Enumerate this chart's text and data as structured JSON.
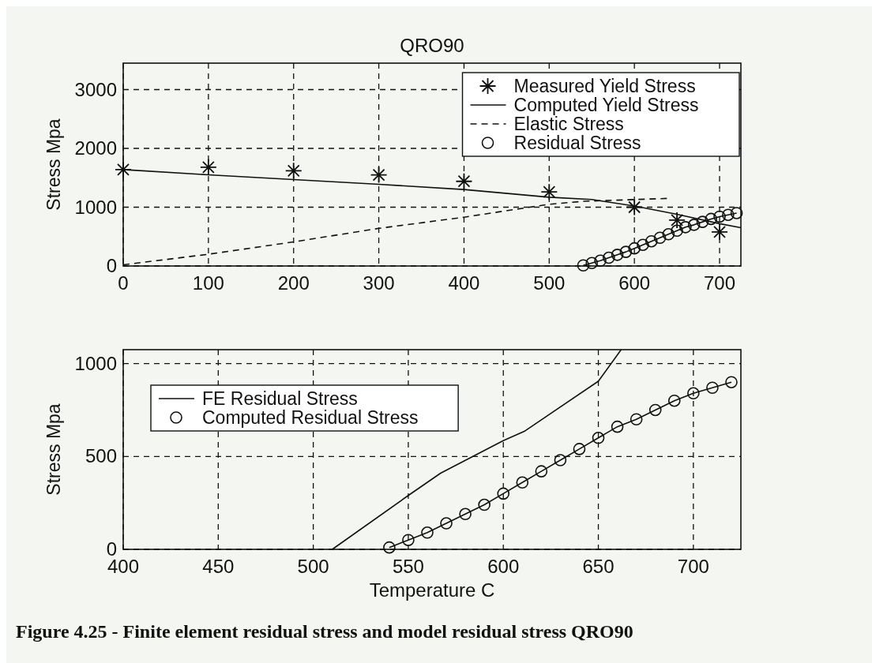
{
  "chart_data": [
    {
      "type": "line",
      "title": "QRO90",
      "ylabel": "Stress Mpa",
      "xlim": [
        0,
        725
      ],
      "ylim": [
        0,
        3450
      ],
      "xticks": [
        0,
        100,
        200,
        300,
        400,
        500,
        600,
        700
      ],
      "yticks": [
        0,
        1000,
        2000,
        3000
      ],
      "grid": true,
      "legend": "top right",
      "series": [
        {
          "name": "Measured Yield Stress",
          "type": "scatter",
          "color": "#111111",
          "marker": "cross",
          "x": [
            0,
            100,
            200,
            300,
            400,
            500,
            600,
            650,
            700
          ],
          "values": [
            1640,
            1680,
            1620,
            1550,
            1440,
            1260,
            1000,
            780,
            580
          ]
        },
        {
          "name": "Computed Yield Stress",
          "color": "#111111",
          "line_style": "solid",
          "x": [
            0,
            100,
            200,
            300,
            400,
            500,
            550,
            600,
            650,
            700,
            725
          ],
          "values": [
            1640,
            1550,
            1470,
            1390,
            1300,
            1170,
            1130,
            1020,
            880,
            720,
            650
          ]
        },
        {
          "name": "Elastic Stress",
          "color": "#111111",
          "line_style": "dashed",
          "x": [
            0,
            100,
            200,
            300,
            400,
            500,
            540,
            600,
            640
          ],
          "values": [
            20,
            200,
            410,
            640,
            830,
            1050,
            1100,
            1130,
            1150
          ]
        },
        {
          "name": "Residual Stress",
          "color": "#111111",
          "marker": "circle",
          "line_style": "solid",
          "x": [
            540,
            550,
            560,
            570,
            580,
            590,
            600,
            610,
            620,
            630,
            640,
            650,
            660,
            670,
            680,
            690,
            700,
            710,
            720
          ],
          "values": [
            10,
            50,
            90,
            140,
            190,
            240,
            300,
            360,
            420,
            480,
            540,
            600,
            660,
            700,
            750,
            800,
            840,
            870,
            900
          ]
        }
      ]
    },
    {
      "type": "line",
      "xlabel": "Temperature C",
      "ylabel": "Stress Mpa",
      "xlim": [
        400,
        725
      ],
      "ylim": [
        0,
        1075
      ],
      "xticks": [
        400,
        450,
        500,
        550,
        600,
        650,
        700
      ],
      "yticks": [
        0,
        500,
        1000
      ],
      "grid": true,
      "legend": "top left",
      "annotations": [
        "Figure 4.25 - Finite element residual stress and model residual stress QRO90"
      ],
      "series": [
        {
          "name": "FE Residual Stress",
          "color": "#111111",
          "line_style": "solid",
          "x": [
            510,
            550,
            567,
            600,
            611,
            650,
            662
          ],
          "values": [
            0,
            290,
            410,
            585,
            635,
            905,
            1075
          ]
        },
        {
          "name": "Computed Residual Stress",
          "color": "#111111",
          "marker": "circle",
          "line_style": "solid",
          "x": [
            540,
            550,
            560,
            570,
            580,
            590,
            600,
            610,
            620,
            630,
            640,
            650,
            660,
            670,
            680,
            690,
            700,
            710,
            720
          ],
          "values": [
            10,
            50,
            90,
            140,
            190,
            240,
            300,
            360,
            420,
            480,
            540,
            600,
            660,
            700,
            750,
            800,
            840,
            870,
            900
          ]
        }
      ]
    }
  ]
}
